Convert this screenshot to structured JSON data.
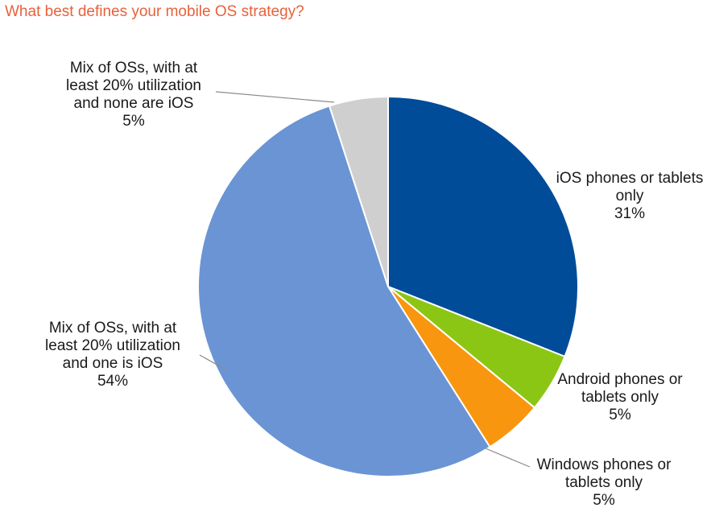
{
  "chart_data": {
    "type": "pie",
    "title": "What best defines your mobile OS strategy?",
    "slices": [
      {
        "label_lines": [
          "iOS phones or tablets",
          "only"
        ],
        "pct_label": "31%",
        "value": 31,
        "color": "#014c98"
      },
      {
        "label_lines": [
          "Android phones or",
          "tablets only"
        ],
        "pct_label": "5%",
        "value": 5,
        "color": "#8cc614"
      },
      {
        "label_lines": [
          "Windows phones or",
          "tablets only"
        ],
        "pct_label": "5%",
        "value": 5,
        "color": "#f8960f"
      },
      {
        "label_lines": [
          "Mix of OSs, with at",
          "least 20% utilization",
          "and one is iOS"
        ],
        "pct_label": "54%",
        "value": 54,
        "color": "#6a94d4"
      },
      {
        "label_lines": [
          "Mix of OSs, with at",
          "least 20% utilization",
          "and none are iOS"
        ],
        "pct_label": "5%",
        "value": 5,
        "color": "#cfcfcf"
      }
    ],
    "start_angle_deg": 0,
    "direction": "clockwise",
    "legend": "none"
  }
}
